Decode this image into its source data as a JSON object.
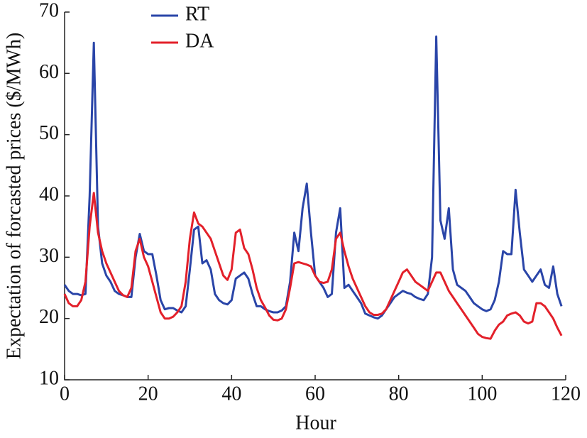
{
  "chart_data": {
    "type": "line",
    "xlabel": "Hour",
    "ylabel": "Expectation of forcasted prices ($/MWh)",
    "xlim": [
      0,
      120
    ],
    "ylim": [
      10,
      70
    ],
    "xticks": [
      0,
      20,
      40,
      60,
      80,
      100,
      120
    ],
    "yticks": [
      10,
      20,
      30,
      40,
      50,
      60,
      70
    ],
    "grid": false,
    "legend": "upper left",
    "x": [
      0,
      1,
      2,
      3,
      4,
      5,
      6,
      7,
      8,
      9,
      10,
      11,
      12,
      13,
      14,
      15,
      16,
      17,
      18,
      19,
      20,
      21,
      22,
      23,
      24,
      25,
      26,
      27,
      28,
      29,
      30,
      31,
      32,
      33,
      34,
      35,
      36,
      37,
      38,
      39,
      40,
      41,
      42,
      43,
      44,
      45,
      46,
      47,
      48,
      49,
      50,
      51,
      52,
      53,
      54,
      55,
      56,
      57,
      58,
      59,
      60,
      61,
      62,
      63,
      64,
      65,
      66,
      67,
      68,
      69,
      70,
      71,
      72,
      73,
      74,
      75,
      76,
      77,
      78,
      79,
      80,
      81,
      82,
      83,
      84,
      85,
      86,
      87,
      88,
      89,
      90,
      91,
      92,
      93,
      94,
      95,
      96,
      97,
      98,
      99,
      100,
      101,
      102,
      103,
      104,
      105,
      106,
      107,
      108,
      109,
      110,
      111,
      112,
      113,
      114,
      115,
      116,
      117,
      118,
      119
    ],
    "series": [
      {
        "name": "RT",
        "color": "#2a45a8",
        "values": [
          25.5,
          24.5,
          24,
          24,
          23.8,
          24,
          40,
          65,
          35,
          29,
          27,
          26,
          24.5,
          24,
          23.8,
          23.5,
          23.5,
          30,
          33.8,
          31,
          30.5,
          30.5,
          27,
          23,
          21.5,
          21.7,
          21.7,
          21.3,
          21,
          22,
          28,
          34.5,
          35,
          29,
          29.5,
          28,
          24,
          23,
          22.5,
          22.3,
          23,
          26.5,
          27,
          27.5,
          26.5,
          24,
          22,
          22,
          21.5,
          21.2,
          21,
          21,
          21.3,
          22,
          26,
          34,
          31,
          38,
          42,
          34,
          27,
          26,
          25,
          23.5,
          24,
          34,
          38,
          25,
          25.5,
          24.5,
          23.5,
          22.5,
          20.8,
          20.5,
          20.2,
          20,
          20.5,
          21.5,
          22.5,
          23.5,
          24,
          24.5,
          24.2,
          24,
          23.5,
          23.2,
          23,
          24,
          30,
          66,
          36,
          33,
          38,
          28,
          25.5,
          25,
          24.5,
          23.5,
          22.5,
          22,
          21.5,
          21.2,
          21.5,
          23,
          26,
          31,
          30.5,
          30.5,
          41,
          34,
          28,
          27,
          26,
          27,
          28,
          25.5,
          25,
          28.5,
          24,
          22
        ]
      },
      {
        "name": "DA",
        "color": "#e3202a",
        "values": [
          24,
          22.5,
          22,
          22,
          23,
          26,
          35,
          40.5,
          34,
          31,
          29,
          27.5,
          26,
          24.5,
          23.8,
          23.5,
          25,
          31,
          33,
          30,
          28.5,
          26,
          23.5,
          21,
          20,
          20,
          20.3,
          21,
          22,
          26,
          33,
          37.3,
          35.5,
          35,
          34,
          33,
          31,
          29,
          27,
          26.3,
          28,
          34,
          34.5,
          31.5,
          30.5,
          28,
          25,
          23,
          21.8,
          20.5,
          19.8,
          19.7,
          20,
          21.5,
          25,
          29,
          29.2,
          29,
          28.8,
          28.5,
          27,
          26,
          25.8,
          26,
          28,
          33,
          34,
          31,
          28.5,
          26.5,
          25,
          23.5,
          22,
          21,
          20.6,
          20.6,
          20.8,
          21.5,
          23,
          24.5,
          26,
          27.5,
          28,
          27,
          26,
          25.5,
          25,
          24.5,
          26,
          27.5,
          27.5,
          26,
          24.5,
          23.5,
          22.5,
          21.5,
          20.5,
          19.5,
          18.5,
          17.5,
          17,
          16.8,
          16.7,
          18,
          19,
          19.5,
          20.5,
          20.8,
          21,
          20.5,
          19.5,
          19.2,
          19.5,
          22.5,
          22.5,
          22,
          21,
          20,
          18.5,
          17.2
        ]
      }
    ]
  }
}
